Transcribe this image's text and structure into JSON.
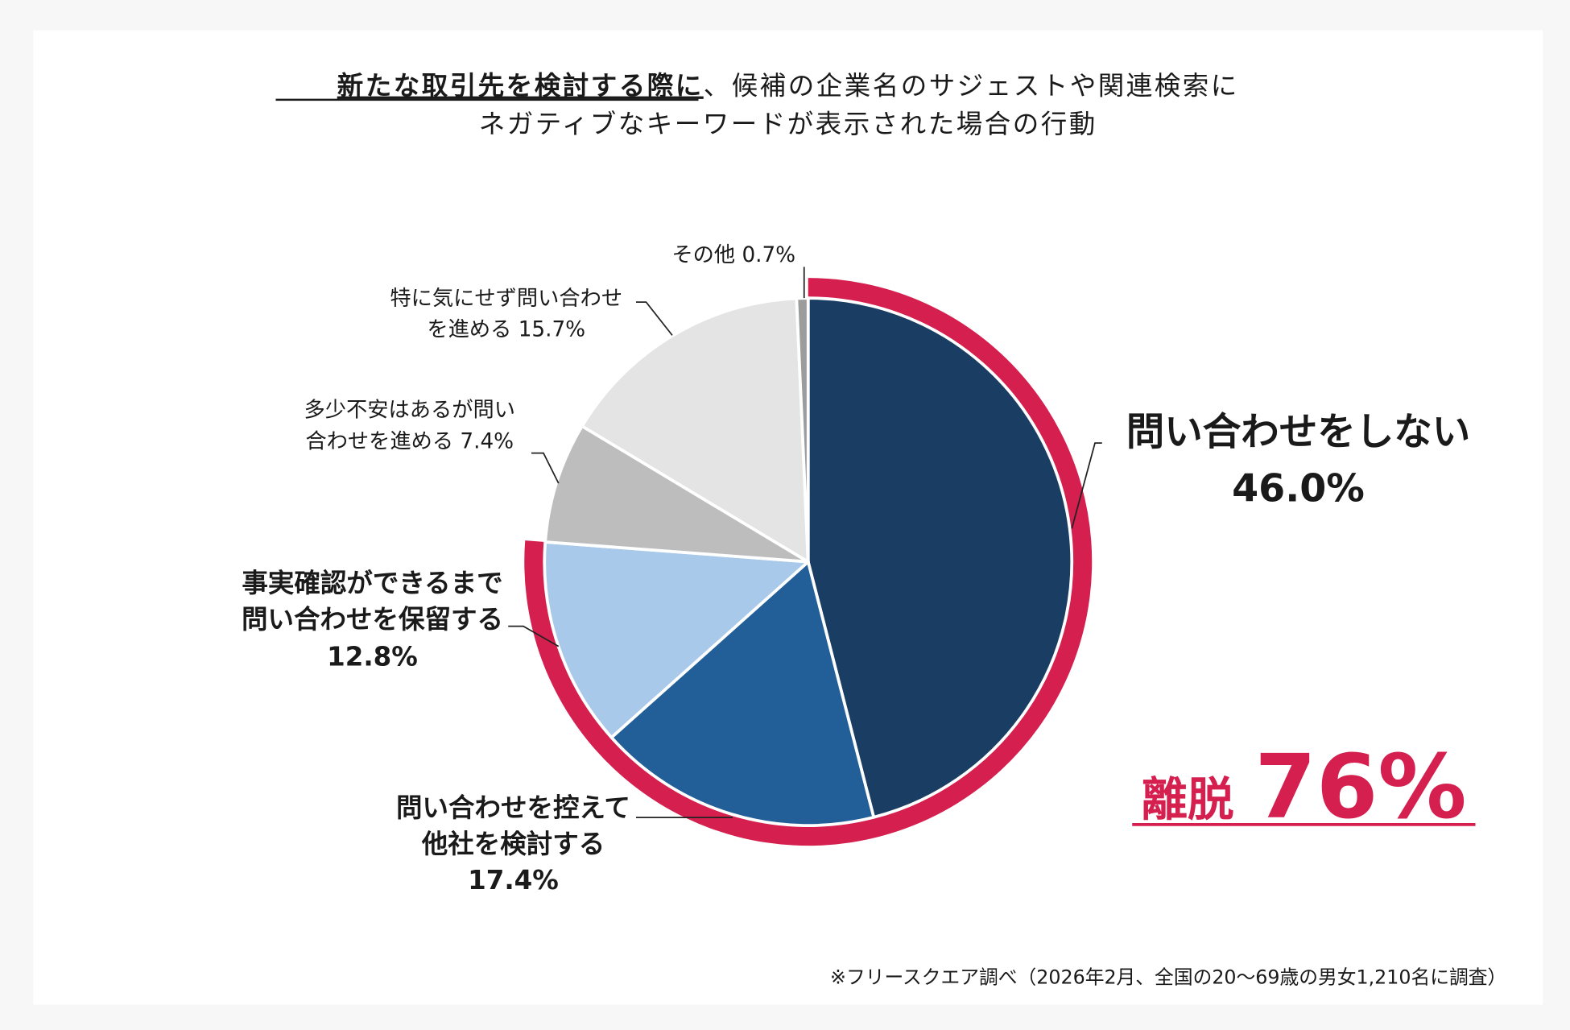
{
  "chart_data": {
    "type": "pie",
    "title_underlined": "新たな取引先を検討する際に",
    "title_rest": "、候補の企業名のサジェストや関連検索に",
    "title_line2": "ネガティブなキーワードが表示された場合の行動",
    "start": "top",
    "direction": "clockwise",
    "slices": [
      {
        "label": "問い合わせをしない",
        "value": 46.0,
        "value_label": "46.0%",
        "color": "#1a3d64"
      },
      {
        "label": "問い合わせを控えて他社を検討する",
        "value": 17.4,
        "value_label": "17.4%",
        "color": "#225f98"
      },
      {
        "label": "事実確認ができるまで問い合わせを保留する",
        "value": 12.8,
        "value_label": "12.8%",
        "color": "#a9c9ea"
      },
      {
        "label": "多少不安はあるが問い合わせを進める",
        "value": 7.4,
        "value_label": "7.4%",
        "color": "#bdbdbd"
      },
      {
        "label": "特に気にせず問い合わせを進める",
        "value": 15.7,
        "value_label": "15.7%",
        "color": "#e4e4e4"
      },
      {
        "label": "その他",
        "value": 0.7,
        "value_label": "0.7%",
        "color": "#9c9c9c"
      }
    ],
    "label_lines": {
      "s0": [
        "問い合わせをしない",
        "46.0%"
      ],
      "s1": [
        "問い合わせを控えて",
        "他社を検討する",
        "17.4%"
      ],
      "s2": [
        "事実確認ができるまで",
        "問い合わせを保留する",
        "12.8%"
      ],
      "s3": [
        "多少不安はあるが問い",
        "合わせを進める 7.4%"
      ],
      "s4": [
        "特に気にせず問い合わせ",
        "を進める 15.7%"
      ],
      "s5": [
        "その他 0.7%"
      ]
    },
    "highlight": {
      "prefix": "離脱",
      "value": "76%",
      "color": "#d41f4f",
      "covers_slices": [
        0,
        1,
        2
      ]
    },
    "footnote": "※フリースクエア調べ（2026年2月、全国の20～69歳の男女1,210名に調査）"
  }
}
